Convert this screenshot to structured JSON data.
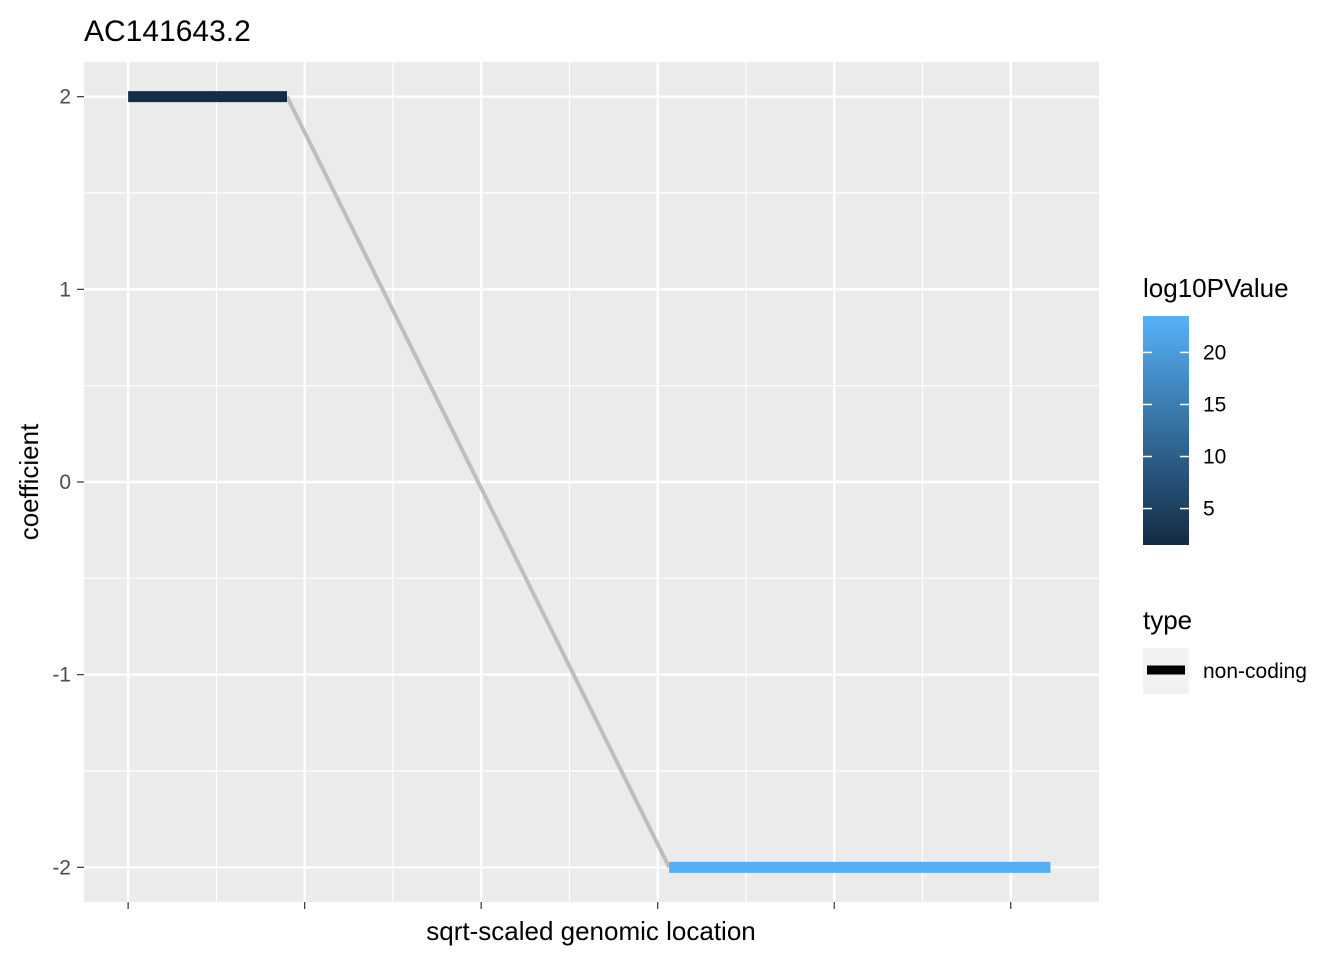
{
  "chart_data": {
    "type": "line",
    "title": "AC141643.2",
    "xlabel": "sqrt-scaled genomic location",
    "ylabel": "coefficient",
    "ylim": [
      -2.18,
      2.18
    ],
    "yticks": [
      2,
      1,
      0,
      -1,
      -2
    ],
    "ytick_labels": [
      "2",
      "1",
      "0",
      "-1",
      "-2"
    ],
    "grid": true,
    "x_tick_labels_shown": false,
    "segments": [
      {
        "x_start": 0.0,
        "x_end": 0.18,
        "y": 2,
        "log10PValue": 2,
        "type": "non-coding"
      },
      {
        "x_start": 0.613,
        "x_end": 1.045,
        "y": -2,
        "log10PValue": 23,
        "type": "non-coding"
      }
    ],
    "connector": {
      "from": [
        0.18,
        2
      ],
      "to": [
        0.613,
        -2
      ],
      "color": "#bebebe"
    },
    "xlim": [
      -0.05,
      1.1
    ],
    "legend": {
      "placement": "right",
      "color_scale": {
        "title": "log10PValue",
        "min": 1.5,
        "max": 23.5,
        "ticks": [
          5,
          10,
          15,
          20
        ],
        "tick_labels": [
          "5",
          "10",
          "15",
          "20"
        ],
        "low_color": "#132b43",
        "high_color": "#56b1f7"
      },
      "type_legend": {
        "title": "type",
        "items": [
          {
            "label": "non-coding",
            "color": "#000000"
          }
        ]
      }
    }
  }
}
